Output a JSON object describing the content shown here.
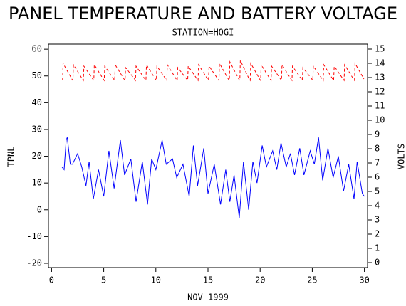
{
  "chart_data": {
    "type": "line",
    "title": "PANEL TEMPERATURE AND BATTERY VOLTAGE",
    "subtitle": "STATION=HOGI",
    "x_label": "NOV 1999",
    "y_label": "TPNL",
    "y2_label": "VOLTS",
    "xlim": [
      -0.3,
      30.3
    ],
    "xticks": [
      0,
      5,
      10,
      15,
      20,
      25,
      30
    ],
    "ylim": [
      -21.6,
      61.9
    ],
    "yticks": [
      -20,
      -10,
      0,
      10,
      20,
      30,
      40,
      50,
      60
    ],
    "y2lim": [
      -0.35,
      15.35
    ],
    "y2ticks": [
      0,
      1,
      2,
      3,
      4,
      5,
      6,
      7,
      8,
      9,
      10,
      11,
      12,
      13,
      14,
      15
    ],
    "series": [
      {
        "color": "#0000ff",
        "dashed": false,
        "x": [
          1.0,
          1.2,
          1.4,
          1.5,
          1.8,
          2.0,
          2.5,
          2.9,
          3.3,
          3.6,
          4.0,
          4.5,
          5.0,
          5.5,
          6.0,
          6.6,
          7.0,
          7.6,
          8.1,
          8.7,
          9.2,
          9.6,
          10.0,
          10.6,
          11.0,
          11.6,
          12.0,
          12.6,
          13.2,
          13.6,
          14.0,
          14.6,
          15.0,
          15.6,
          16.2,
          16.7,
          17.1,
          17.5,
          18.0,
          18.4,
          18.9,
          19.3,
          19.7,
          20.2,
          20.6,
          21.2,
          21.6,
          22.0,
          22.5,
          22.9,
          23.3,
          23.8,
          24.2,
          24.8,
          25.2,
          25.6,
          26.0,
          26.5,
          27.0,
          27.5,
          28.0,
          28.5,
          29.0,
          29.3,
          29.8,
          30.0
        ],
        "values": [
          16,
          15,
          26,
          27,
          17,
          17,
          21,
          16,
          9,
          18,
          4,
          15,
          5,
          22,
          8,
          26,
          13,
          19,
          3,
          18,
          2,
          19,
          15,
          26,
          17,
          19,
          12,
          17,
          5,
          24,
          9,
          23,
          6,
          17,
          2,
          15,
          3,
          13,
          -3,
          18,
          0,
          18,
          10,
          24,
          16,
          22,
          15,
          25,
          16,
          21,
          13,
          23,
          13,
          22,
          17,
          27,
          11,
          23,
          12,
          20,
          7,
          17,
          4,
          18,
          6,
          5
        ]
      },
      {
        "color": "#ff0000",
        "dashed": true,
        "axis": "y2",
        "x": [
          1.05,
          1.1,
          1.95,
          2.05,
          2.1,
          2.95,
          3.05,
          3.1,
          3.95,
          4.05,
          4.1,
          4.95,
          5.05,
          5.1,
          5.95,
          6.05,
          6.1,
          6.95,
          7.05,
          7.1,
          7.95,
          8.05,
          8.1,
          8.95,
          9.05,
          9.1,
          9.95,
          10.05,
          10.1,
          10.95,
          11.05,
          11.1,
          11.95,
          12.05,
          12.1,
          12.95,
          13.05,
          13.1,
          13.95,
          14.05,
          14.1,
          14.95,
          15.05,
          15.1,
          15.95,
          16.05,
          16.1,
          16.95,
          17.05,
          17.1,
          17.95,
          18.05,
          18.1,
          18.95,
          19.05,
          19.1,
          19.95,
          20.05,
          20.1,
          20.95,
          21.05,
          21.1,
          21.95,
          22.05,
          22.1,
          22.95,
          23.05,
          23.1,
          23.95,
          24.05,
          24.1,
          24.95,
          25.05,
          25.1,
          25.95,
          26.05,
          26.1,
          26.95,
          27.05,
          27.1,
          27.95,
          28.05,
          28.1,
          28.95,
          29.05,
          29.1,
          29.95
        ],
        "values": [
          12.8,
          14.0,
          12.9,
          12.8,
          13.9,
          12.9,
          12.8,
          13.8,
          12.9,
          12.8,
          13.9,
          12.9,
          12.8,
          13.8,
          12.9,
          12.8,
          13.9,
          12.9,
          12.8,
          13.7,
          12.9,
          12.8,
          13.8,
          12.9,
          12.8,
          13.9,
          12.9,
          12.8,
          13.8,
          12.9,
          12.8,
          13.9,
          12.9,
          12.8,
          13.7,
          12.9,
          12.8,
          13.8,
          12.9,
          12.8,
          13.9,
          12.9,
          12.8,
          13.8,
          12.9,
          12.8,
          14.0,
          12.9,
          12.8,
          14.1,
          12.9,
          12.8,
          14.2,
          12.9,
          12.8,
          14.0,
          12.9,
          12.8,
          13.9,
          12.9,
          12.8,
          13.8,
          12.9,
          12.8,
          13.9,
          12.9,
          12.8,
          13.8,
          12.9,
          12.8,
          13.7,
          12.9,
          12.8,
          13.8,
          12.9,
          12.8,
          13.9,
          12.9,
          12.8,
          13.8,
          12.9,
          12.8,
          13.9,
          12.9,
          12.8,
          14.0,
          12.9
        ]
      }
    ]
  }
}
